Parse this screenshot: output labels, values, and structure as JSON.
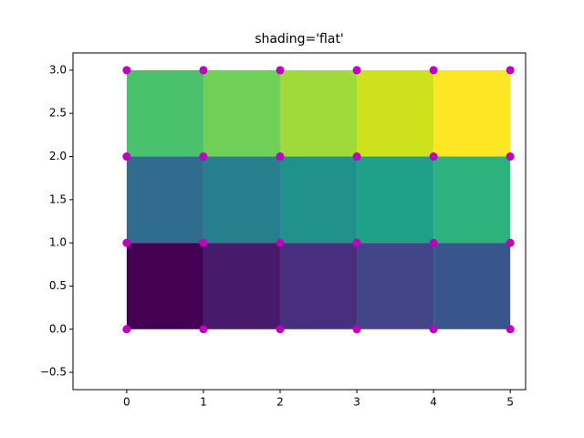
{
  "chart_data": {
    "type": "pcolormesh",
    "title": "shading='flat'",
    "x_edges": [
      0,
      1,
      2,
      3,
      4,
      5
    ],
    "y_edges": [
      0,
      1,
      2,
      3
    ],
    "values": [
      [
        0,
        1,
        2,
        3,
        4
      ],
      [
        5,
        6,
        7,
        8,
        9
      ],
      [
        10,
        11,
        12,
        13,
        14
      ]
    ],
    "colors": [
      [
        "#440154",
        "#481a6c",
        "#472f7d",
        "#414487",
        "#39568c"
      ],
      [
        "#2f6c8e",
        "#277f8e",
        "#21918c",
        "#1fa188",
        "#2db27d"
      ],
      [
        "#4ac16d",
        "#70cf57",
        "#9fda3a",
        "#cde11d",
        "#fde725"
      ]
    ],
    "marker_color": "#bf00bf",
    "xlim": [
      -0.7,
      5.2
    ],
    "ylim": [
      -0.7,
      3.2
    ],
    "xticks": [
      0,
      1,
      2,
      3,
      4,
      5
    ],
    "yticks": [
      {
        "value": -0.5,
        "label": "−0.5"
      },
      {
        "value": 0,
        "label": "0.0"
      },
      {
        "value": 0.5,
        "label": "0.5"
      },
      {
        "value": 1,
        "label": "1.0"
      },
      {
        "value": 1.5,
        "label": "1.5"
      },
      {
        "value": 2,
        "label": "2.0"
      },
      {
        "value": 2.5,
        "label": "2.5"
      },
      {
        "value": 3,
        "label": "3.0"
      }
    ]
  }
}
